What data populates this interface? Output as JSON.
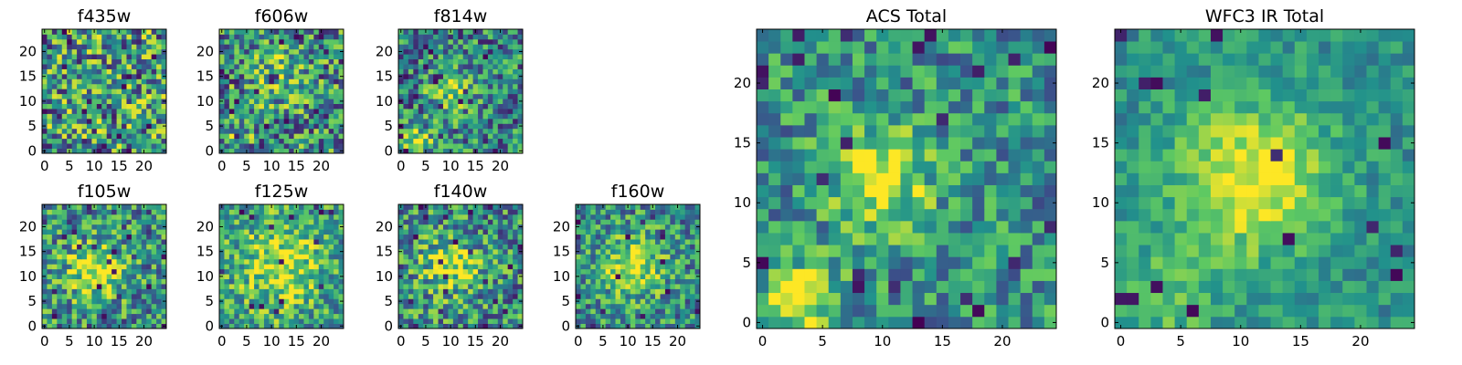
{
  "chart_data": [
    {
      "type": "heatmap",
      "title": "f435w",
      "seed": 11,
      "blobs": [],
      "noise": 0.55,
      "base": 0.55,
      "outliers": 0.05,
      "xticks": [
        0,
        5,
        10,
        15,
        20
      ],
      "yticks": [
        0,
        5,
        10,
        15,
        20
      ],
      "xlim": [
        -0.5,
        24.5
      ],
      "ylim": [
        -0.5,
        24.5
      ]
    },
    {
      "type": "heatmap",
      "title": "f606w",
      "seed": 23,
      "blobs": [
        {
          "x": 11,
          "y": 15,
          "s": 4,
          "a": 0.25
        },
        {
          "x": 3,
          "y": 3,
          "s": 2,
          "a": 0.2
        }
      ],
      "noise": 0.5,
      "base": 0.5,
      "outliers": 0.04,
      "xticks": [
        0,
        5,
        10,
        15,
        20
      ],
      "yticks": [
        0,
        5,
        10,
        15,
        20
      ],
      "xlim": [
        -0.5,
        24.5
      ],
      "ylim": [
        -0.5,
        24.5
      ]
    },
    {
      "type": "heatmap",
      "title": "f814w",
      "seed": 37,
      "blobs": [
        {
          "x": 10,
          "y": 12,
          "s": 3,
          "a": 0.4
        },
        {
          "x": 3,
          "y": 2,
          "s": 2,
          "a": 0.5
        }
      ],
      "noise": 0.45,
      "base": 0.45,
      "outliers": 0.04,
      "xticks": [
        0,
        5,
        10,
        15,
        20
      ],
      "yticks": [
        0,
        5,
        10,
        15,
        20
      ],
      "xlim": [
        -0.5,
        24.5
      ],
      "ylim": [
        -0.5,
        24.5
      ]
    },
    {
      "type": "heatmap",
      "title": "f105w",
      "seed": 41,
      "blobs": [
        {
          "x": 10,
          "y": 11,
          "s": 4,
          "a": 0.45
        }
      ],
      "noise": 0.45,
      "base": 0.5,
      "outliers": 0.03,
      "xticks": [
        0,
        5,
        10,
        15,
        20
      ],
      "yticks": [
        0,
        5,
        10,
        15,
        20
      ],
      "xlim": [
        -0.5,
        24.5
      ],
      "ylim": [
        -0.5,
        24.5
      ]
    },
    {
      "type": "heatmap",
      "title": "f125w",
      "seed": 53,
      "blobs": [
        {
          "x": 12,
          "y": 12,
          "s": 6,
          "a": 0.35
        }
      ],
      "noise": 0.4,
      "base": 0.55,
      "outliers": 0.03,
      "xticks": [
        0,
        5,
        10,
        15,
        20
      ],
      "yticks": [
        0,
        5,
        10,
        15,
        20
      ],
      "xlim": [
        -0.5,
        24.5
      ],
      "ylim": [
        -0.5,
        24.5
      ]
    },
    {
      "type": "heatmap",
      "title": "f140w",
      "seed": 67,
      "blobs": [
        {
          "x": 10,
          "y": 12,
          "s": 4,
          "a": 0.4
        }
      ],
      "noise": 0.45,
      "base": 0.5,
      "outliers": 0.03,
      "xticks": [
        0,
        5,
        10,
        15,
        20
      ],
      "yticks": [
        0,
        5,
        10,
        15,
        20
      ],
      "xlim": [
        -0.5,
        24.5
      ],
      "ylim": [
        -0.5,
        24.5
      ]
    },
    {
      "type": "heatmap",
      "title": "f160w",
      "seed": 79,
      "blobs": [
        {
          "x": 11,
          "y": 12,
          "s": 4,
          "a": 0.45
        }
      ],
      "noise": 0.4,
      "base": 0.5,
      "outliers": 0.03,
      "xticks": [
        0,
        5,
        10,
        15,
        20
      ],
      "yticks": [
        0,
        5,
        10,
        15,
        20
      ],
      "xlim": [
        -0.5,
        24.5
      ],
      "ylim": [
        -0.5,
        24.5
      ]
    },
    {
      "type": "heatmap",
      "title": "ACS Total",
      "seed": 97,
      "blobs": [
        {
          "x": 10,
          "y": 12,
          "s": 3,
          "a": 0.45
        },
        {
          "x": 3,
          "y": 2,
          "s": 2,
          "a": 0.6
        }
      ],
      "noise": 0.35,
      "base": 0.5,
      "outliers": 0.04,
      "xticks": [
        0,
        5,
        10,
        15,
        20
      ],
      "yticks": [
        0,
        5,
        10,
        15,
        20
      ],
      "xlim": [
        -0.5,
        24.5
      ],
      "ylim": [
        -0.5,
        24.5
      ]
    },
    {
      "type": "heatmap",
      "title": "WFC3 IR Total",
      "seed": 113,
      "blobs": [
        {
          "x": 11,
          "y": 12,
          "s": 4.5,
          "a": 0.5
        },
        {
          "x": 4,
          "y": 2,
          "s": 3,
          "a": 0.2
        }
      ],
      "noise": 0.2,
      "base": 0.5,
      "outliers": 0.02,
      "xticks": [
        0,
        5,
        10,
        15,
        20
      ],
      "yticks": [
        0,
        5,
        10,
        15,
        20
      ],
      "xlim": [
        -0.5,
        24.5
      ],
      "ylim": [
        -0.5,
        24.5
      ]
    }
  ],
  "colormap": [
    "#440154",
    "#3b528b",
    "#21918c",
    "#5ec962",
    "#fde725"
  ]
}
